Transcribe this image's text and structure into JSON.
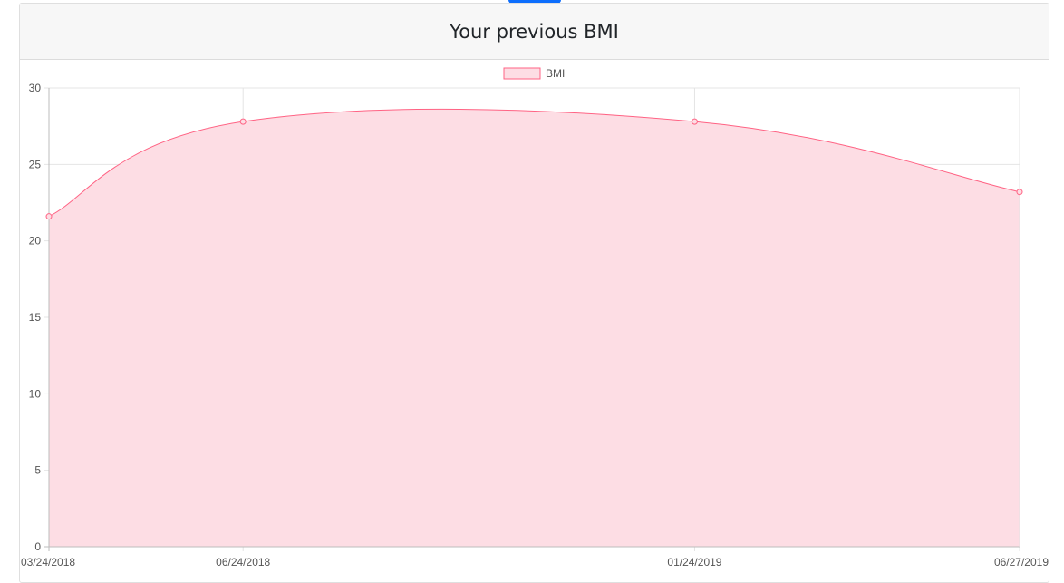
{
  "card": {
    "title": "Your previous BMI"
  },
  "chart_data": {
    "type": "area",
    "title": "Your previous BMI",
    "legend": {
      "position": "top-center",
      "entries": [
        "BMI"
      ]
    },
    "x": [
      "03/24/2018",
      "06/24/2018",
      "01/24/2019",
      "06/27/2019"
    ],
    "series": [
      {
        "name": "BMI",
        "values": [
          21.6,
          27.8,
          27.8,
          23.2
        ],
        "color": "#ff6384",
        "fill": "#fddde4"
      }
    ],
    "ylim": [
      0,
      30
    ],
    "yticks": [
      0,
      5,
      10,
      15,
      20,
      25,
      30
    ],
    "grid": true,
    "xlabel": "",
    "ylabel": ""
  }
}
